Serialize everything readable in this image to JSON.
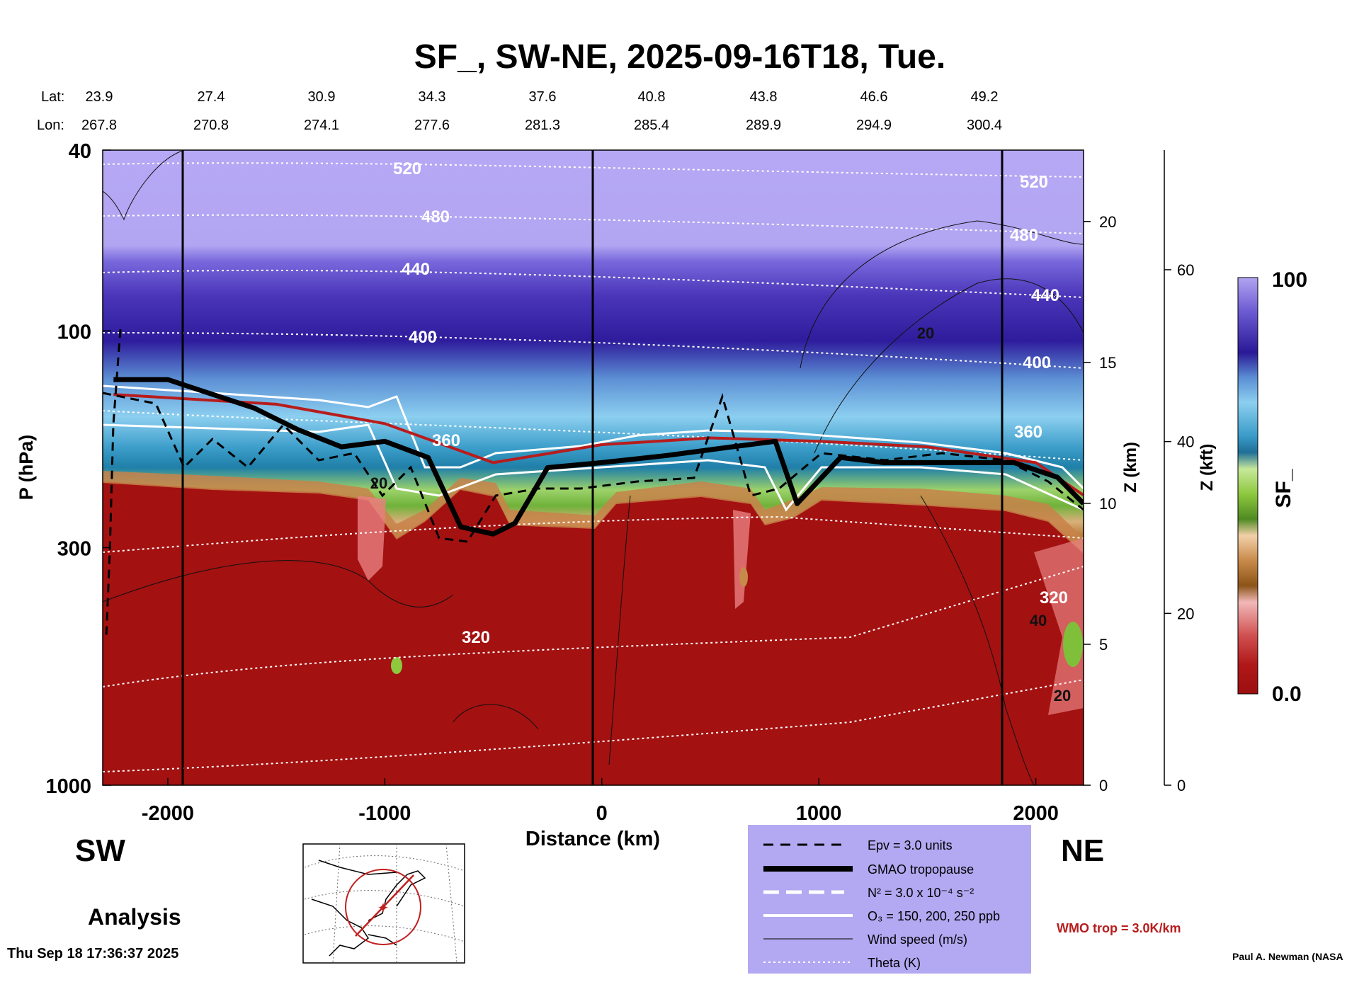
{
  "title": "SF_, SW-NE, 2025-09-16T18, Tue.",
  "lat_label": "Lat:",
  "lon_label": "Lon:",
  "lat_values": [
    "23.9",
    "27.4",
    "30.9",
    "34.3",
    "37.6",
    "40.8",
    "43.8",
    "46.6",
    "49.2"
  ],
  "lon_values": [
    "267.8",
    "270.8",
    "274.1",
    "277.6",
    "281.3",
    "285.4",
    "289.9",
    "294.9",
    "300.4"
  ],
  "chart_data": {
    "type": "heatmap",
    "title": "SF_, SW-NE, 2025-09-16T18, Tue.",
    "xlabel": "Distance (km)",
    "ylabel": "P (hPa)",
    "xlim": [
      -2300,
      2220
    ],
    "ylim": [
      1000,
      40
    ],
    "y_scale": "log",
    "x_ticks": [
      "-2000",
      "-1000",
      "0",
      "1000",
      "2000"
    ],
    "y_ticks": [
      "40",
      "100",
      "300",
      "1000"
    ],
    "z_km_label": "Z (km)",
    "z_km_ticks": [
      "0",
      "5",
      "10",
      "15",
      "20"
    ],
    "z_kft_label": "Z (kft)",
    "z_kft_ticks": [
      "0",
      "20",
      "40",
      "60"
    ],
    "colorbar": {
      "label": "SF_",
      "max": "100",
      "min": "0.0"
    },
    "tropopause_profile": {
      "x_km": [
        -2250,
        -2000,
        -1600,
        -1400,
        -1200,
        -1000,
        -800,
        -650,
        -500,
        -400,
        -250,
        0,
        300,
        600,
        800,
        900,
        1100,
        1300,
        1600,
        1900,
        2100,
        2220
      ],
      "p_hpa": [
        128,
        128,
        148,
        165,
        180,
        175,
        190,
        270,
        280,
        265,
        200,
        195,
        188,
        180,
        175,
        240,
        190,
        195,
        195,
        195,
        210,
        240
      ]
    },
    "wmo_profile": {
      "x_km": [
        -2250,
        -1500,
        -1000,
        -500,
        0,
        500,
        1000,
        1500,
        2000,
        2220
      ],
      "p_hpa": [
        138,
        145,
        160,
        195,
        178,
        172,
        175,
        180,
        195,
        230
      ]
    },
    "theta_labels": [
      "520",
      "480",
      "440",
      "400",
      "360",
      "320",
      "320"
    ],
    "wind_labels": [
      "20",
      "20",
      "40",
      "20"
    ],
    "series_legend": [
      "Epv = 3.0 units",
      "GMAO tropopause",
      "N² = 3.0 x 10⁻⁴ s⁻²",
      "O₃ = 150, 200, 250 ppb",
      "Wind speed (m/s)",
      "Theta (K)"
    ],
    "wmo_label": "WMO trop = 3.0K/km",
    "legend_placement": "bottom-center"
  },
  "footer": {
    "sw": "SW",
    "ne": "NE",
    "analysis": "Analysis",
    "timestamp": "Thu Sep 18 17:36:37 2025",
    "credit": "Paul A. Newman (NASA"
  },
  "colors": {
    "top": "#b6a8f4",
    "stratosphere": "#4330b0",
    "transition": "#46b0d8",
    "green": "#8ec83e",
    "tan": "#c88a4a",
    "troposphere": "#a31111",
    "tropopause": "#000000",
    "wmo": "#b81c1c",
    "legend_bg": "#b3a8f2"
  }
}
